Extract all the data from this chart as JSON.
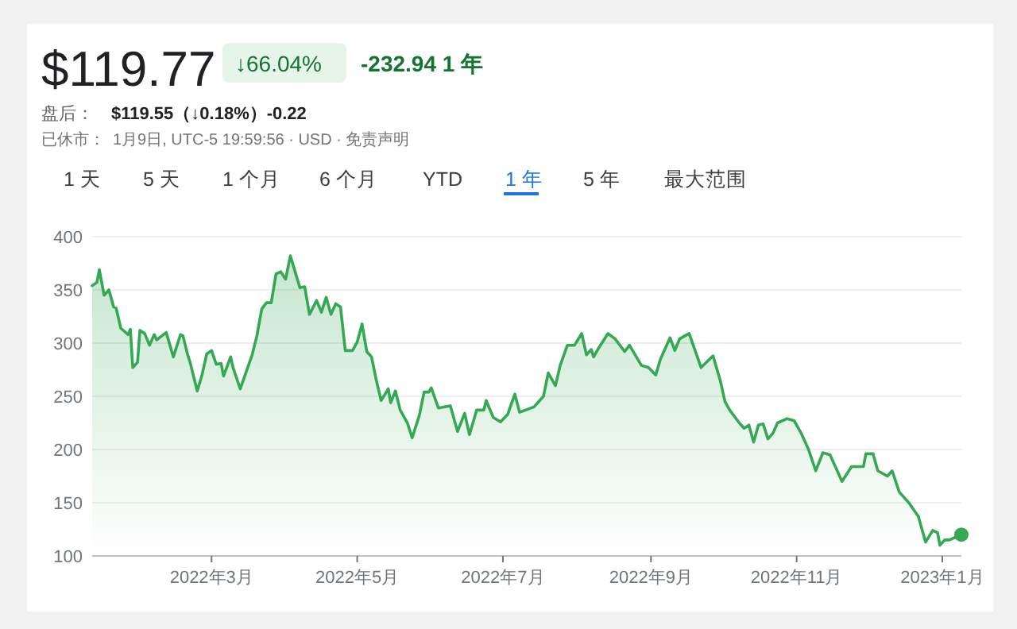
{
  "chart_data": {
    "type": "area",
    "title": "$119.77",
    "annotations": [
      "↓66.04%",
      "-232.94 1 年",
      "盘后：",
      "$119.55（↓0.18%）-0.22",
      "已休市：",
      "1月9日, UTC-5 19:59:56 · USD · 免责声明",
      "1 天",
      "5 天",
      "1 个月",
      "6 个月",
      "YTD",
      "1 年",
      "5 年",
      "最大范围"
    ],
    "x": [
      "2022-01-10",
      "2022-01-12",
      "2022-01-13",
      "2022-01-15",
      "2022-01-17",
      "2022-01-19",
      "2022-01-20",
      "2022-01-22",
      "2022-01-25",
      "2022-01-26",
      "2022-01-27",
      "2022-01-29",
      "2022-01-30",
      "2022-02-01",
      "2022-02-03",
      "2022-02-05",
      "2022-02-06",
      "2022-02-10",
      "2022-02-13",
      "2022-02-16",
      "2022-02-17",
      "2022-02-19",
      "2022-02-20",
      "2022-02-23",
      "2022-02-25",
      "2022-02-27",
      "2022-03-01",
      "2022-03-03",
      "2022-03-05",
      "2022-03-06",
      "2022-03-09",
      "2022-03-10",
      "2022-03-13",
      "2022-03-18",
      "2022-03-20",
      "2022-03-22",
      "2022-03-24",
      "2022-03-26",
      "2022-03-28",
      "2022-03-30",
      "2022-04-01",
      "2022-04-03",
      "2022-04-07",
      "2022-04-09",
      "2022-04-11",
      "2022-04-14",
      "2022-04-16",
      "2022-04-18",
      "2022-04-20",
      "2022-04-22",
      "2022-04-24",
      "2022-04-26",
      "2022-04-29",
      "2022-05-01",
      "2022-05-03",
      "2022-05-05",
      "2022-05-07",
      "2022-05-09",
      "2022-05-11",
      "2022-05-14",
      "2022-05-15",
      "2022-05-17",
      "2022-05-19",
      "2022-05-22",
      "2022-05-24",
      "2022-05-27",
      "2022-05-29",
      "2022-05-31",
      "2022-06-01",
      "2022-06-04",
      "2022-06-09",
      "2022-06-12",
      "2022-06-15",
      "2022-06-17",
      "2022-06-20",
      "2022-06-23",
      "2022-06-24",
      "2022-06-27",
      "2022-06-30",
      "2022-07-03",
      "2022-07-06",
      "2022-07-08",
      "2022-07-14",
      "2022-07-18",
      "2022-07-20",
      "2022-07-23",
      "2022-07-25",
      "2022-07-28",
      "2022-07-31",
      "2022-08-03",
      "2022-08-05",
      "2022-08-07",
      "2022-08-08",
      "2022-08-10",
      "2022-08-14",
      "2022-08-17",
      "2022-08-21",
      "2022-08-23",
      "2022-08-28",
      "2022-08-31",
      "2022-09-03",
      "2022-09-05",
      "2022-09-09",
      "2022-09-11",
      "2022-09-13",
      "2022-09-17",
      "2022-09-22",
      "2022-09-27",
      "2022-09-30",
      "2022-10-02",
      "2022-10-04",
      "2022-10-08",
      "2022-10-10",
      "2022-10-12",
      "2022-10-14",
      "2022-10-16",
      "2022-10-18",
      "2022-10-20",
      "2022-10-22",
      "2022-10-24",
      "2022-10-28",
      "2022-10-31",
      "2022-11-03",
      "2022-11-06",
      "2022-11-09",
      "2022-11-12",
      "2022-11-15",
      "2022-11-18",
      "2022-11-20",
      "2022-11-24",
      "2022-11-29",
      "2022-11-30",
      "2022-12-03",
      "2022-12-05",
      "2022-12-09",
      "2022-12-11",
      "2022-12-14",
      "2022-12-18",
      "2022-12-22",
      "2022-12-25",
      "2022-12-28",
      "2022-12-30",
      "2022-12-31",
      "2023-01-02",
      "2023-01-04",
      "2023-01-06",
      "2023-01-09"
    ],
    "series": [
      {
        "color": "#34a853",
        "values": [
          354,
          357,
          369,
          345,
          350,
          334,
          333,
          314,
          308,
          313,
          277,
          282,
          312,
          309,
          298,
          308,
          303,
          310,
          287,
          308,
          307,
          289,
          282,
          255,
          270,
          290,
          293,
          280,
          281,
          269,
          287,
          277,
          257,
          289,
          307,
          332,
          338,
          338,
          365,
          367,
          360,
          382,
          352,
          353,
          327,
          340,
          329,
          343,
          327,
          337,
          334,
          293,
          293,
          301,
          318,
          292,
          287,
          265,
          246,
          257,
          244,
          255,
          237,
          225,
          211,
          232,
          254,
          254,
          258,
          239,
          241,
          217,
          234,
          214,
          237,
          237,
          246,
          230,
          226,
          233,
          252,
          235,
          240,
          250,
          272,
          260,
          279,
          298,
          298,
          309,
          289,
          294,
          287,
          295,
          309,
          304,
          292,
          298,
          279,
          277,
          270,
          285,
          305,
          293,
          304,
          309,
          277,
          288,
          265,
          245,
          237,
          225,
          220,
          223,
          207,
          223,
          224,
          210,
          215,
          225,
          229,
          227,
          215,
          200,
          180,
          197,
          195,
          180,
          170,
          184,
          184,
          196,
          196,
          180,
          175,
          180,
          160,
          150,
          137,
          113,
          124,
          122,
          110,
          115,
          115,
          117,
          120
        ]
      }
    ],
    "xlim": [
      "2022-01-10",
      "2023-01-09"
    ],
    "xticks": [
      {
        "value": "2022-03-01",
        "label": "2022年3月"
      },
      {
        "value": "2022-05-01",
        "label": "2022年5月"
      },
      {
        "value": "2022-07-01",
        "label": "2022年7月"
      },
      {
        "value": "2022-09-01",
        "label": "2022年9月"
      },
      {
        "value": "2022-11-01",
        "label": "2022年11月"
      },
      {
        "value": "2023-01-01",
        "label": "2023年1月"
      }
    ],
    "ylim": [
      100,
      400
    ],
    "yticks": [
      100,
      150,
      200,
      250,
      300,
      350,
      400
    ],
    "grid": "y"
  }
}
